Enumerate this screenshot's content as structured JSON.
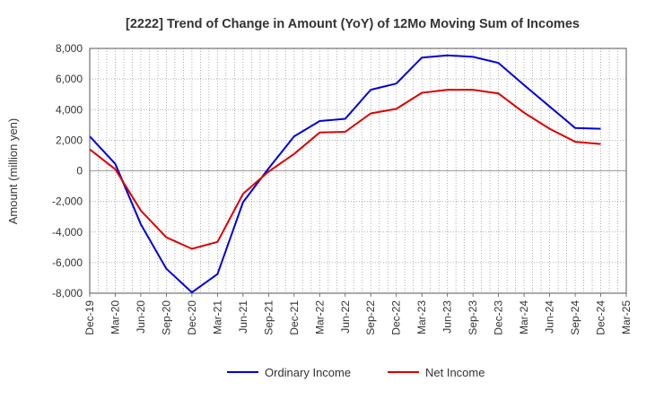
{
  "chart_data": {
    "type": "line",
    "title": "[2222]  Trend of Change in Amount (YoY) of 12Mo Moving Sum of Incomes",
    "xlabel": "",
    "ylabel": "Amount (million yen)",
    "ylim": [
      -8000,
      8000
    ],
    "yticks": [
      8000,
      6000,
      4000,
      2000,
      0,
      -2000,
      -4000,
      -6000,
      -8000
    ],
    "ytick_labels": [
      "8,000",
      "6,000",
      "4,000",
      "2,000",
      "0",
      "-2,000",
      "-4,000",
      "-6,000",
      "-8,000"
    ],
    "x_tick_labels": [
      "Dec-19",
      "Mar-20",
      "Jun-20",
      "Sep-20",
      "Dec-20",
      "Mar-21",
      "Jun-21",
      "Sep-21",
      "Dec-21",
      "Mar-22",
      "Jun-22",
      "Sep-22",
      "Dec-22",
      "Mar-23",
      "Jun-23",
      "Sep-23",
      "Dec-23",
      "Mar-24",
      "Jun-24",
      "Sep-24",
      "Dec-24",
      "Mar-25"
    ],
    "grid": true,
    "legend_position": "bottom",
    "series": [
      {
        "name": "Ordinary Income",
        "color": "#0000dd",
        "values": [
          2250,
          450,
          -3500,
          -6400,
          -7950,
          -6750,
          -2050,
          150,
          2250,
          3250,
          3400,
          5300,
          5700,
          7400,
          7550,
          7450,
          7050,
          5600,
          4200,
          2800,
          2750
        ]
      },
      {
        "name": "Net Income",
        "color": "#dd0000",
        "values": [
          1400,
          100,
          -2600,
          -4350,
          -5100,
          -4650,
          -1500,
          -50,
          1100,
          2500,
          2550,
          3750,
          4050,
          5100,
          5300,
          5300,
          5050,
          3800,
          2750,
          1900,
          1750
        ]
      }
    ]
  }
}
